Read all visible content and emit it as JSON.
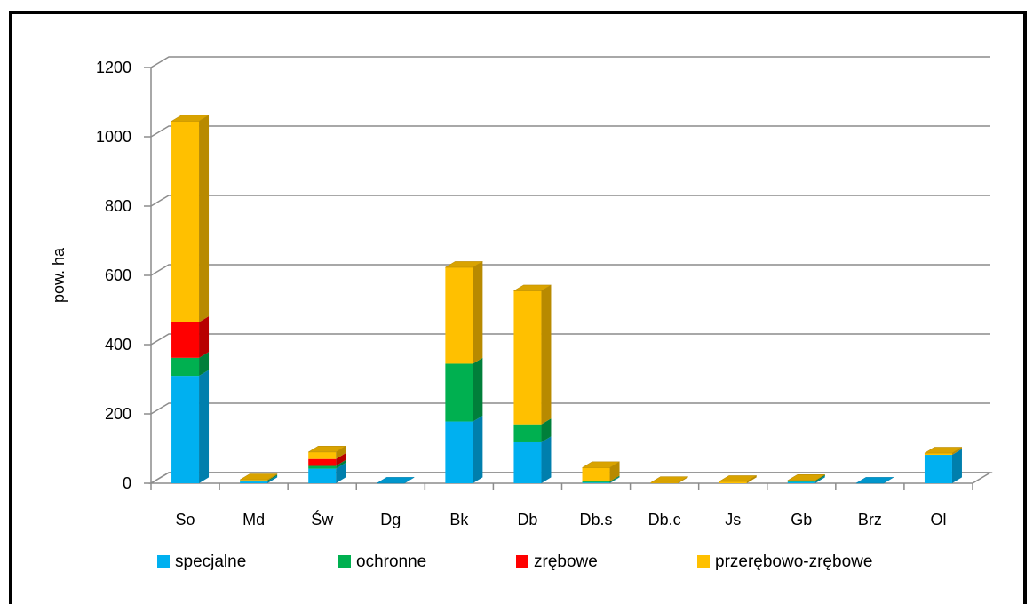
{
  "chart_data": {
    "type": "bar",
    "stacked": true,
    "three_d": true,
    "categories": [
      "So",
      "Md",
      "Św",
      "Dg",
      "Bk",
      "Db",
      "Db.s",
      "Db.c",
      "Js",
      "Gb",
      "Brz",
      "Ol"
    ],
    "series": [
      {
        "name": "specjalne",
        "color": "#00b0f0",
        "values": [
          310,
          5,
          42,
          0,
          178,
          118,
          2,
          0,
          0,
          4,
          0,
          82
        ]
      },
      {
        "name": "ochronne",
        "color": "#00b050",
        "values": [
          52,
          3,
          8,
          0,
          167,
          52,
          3,
          0,
          0,
          3,
          0,
          0
        ]
      },
      {
        "name": "zrębowe",
        "color": "#ff0000",
        "values": [
          103,
          0,
          20,
          0,
          0,
          0,
          0,
          0,
          0,
          0,
          0,
          0
        ]
      },
      {
        "name": "przerębowo-zrębowe",
        "color": "#ffc000",
        "values": [
          580,
          2,
          20,
          0,
          278,
          385,
          40,
          2,
          5,
          1,
          0,
          5
        ]
      }
    ],
    "xlabel": "",
    "ylabel": "pow. ha",
    "ylim": [
      0,
      1200
    ],
    "yticks": [
      0,
      200,
      400,
      600,
      800,
      1000,
      1200
    ],
    "grid": true,
    "legend": "bottom"
  }
}
